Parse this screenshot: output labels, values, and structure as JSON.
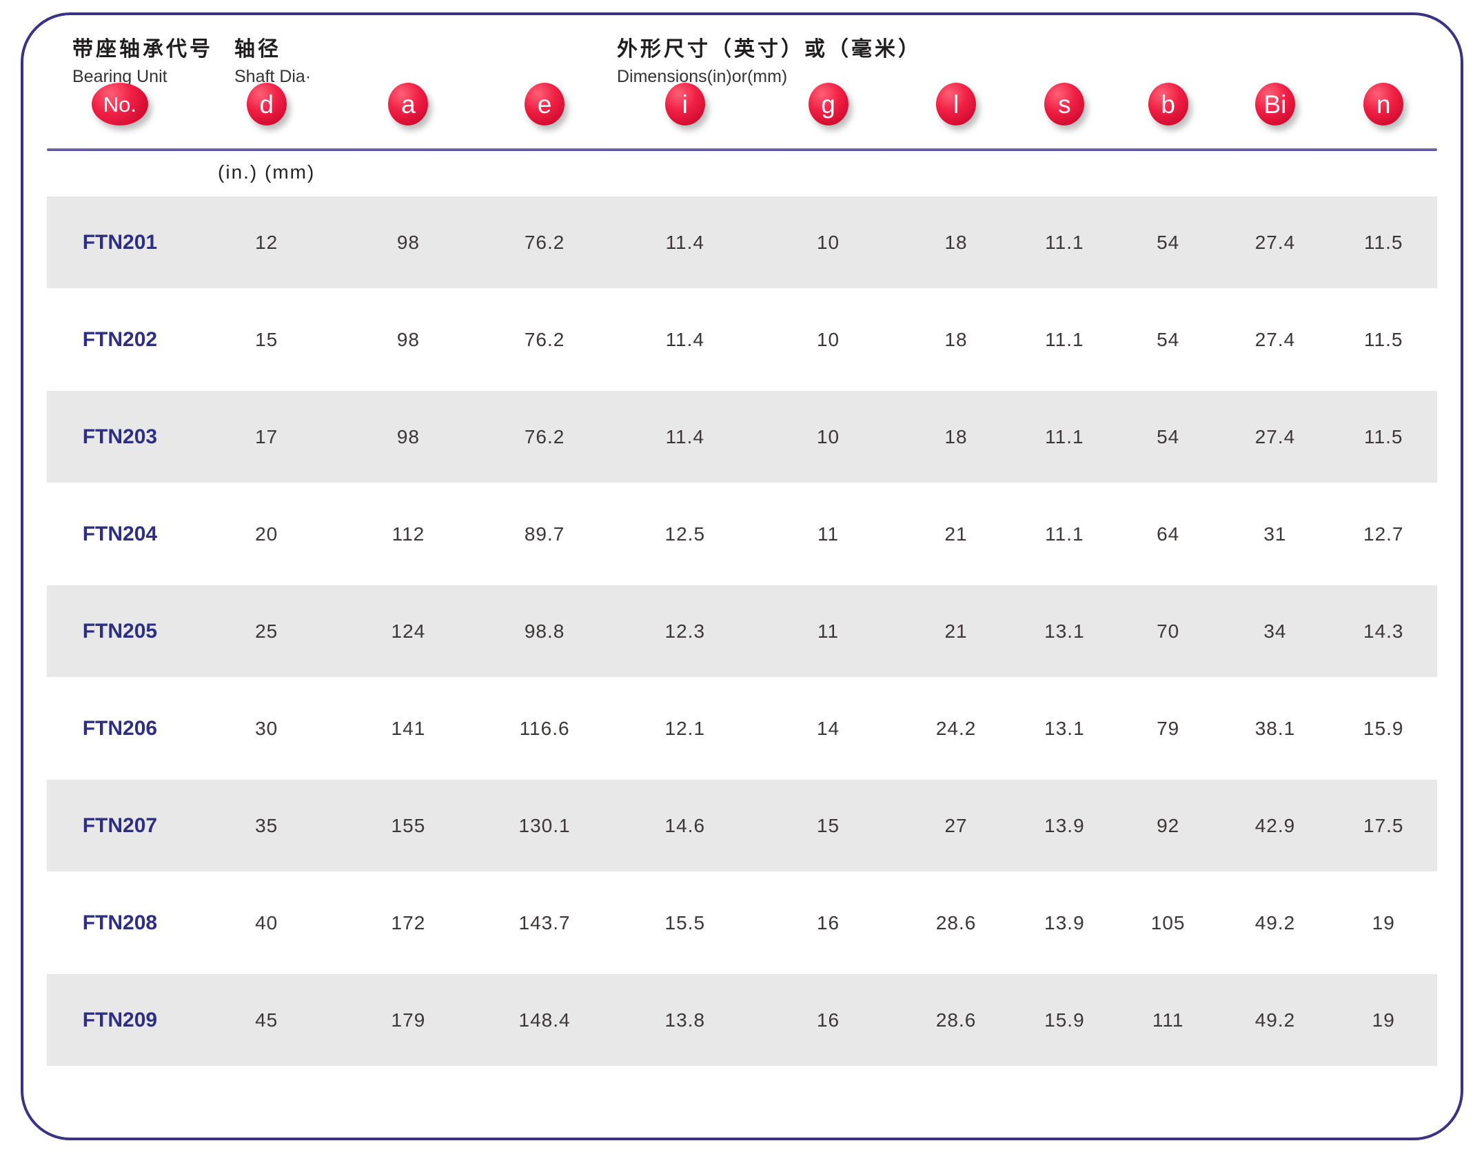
{
  "header": {
    "bearing_unit": {
      "zh": "带座轴承代号",
      "en": "Bearing Unit"
    },
    "shaft_dia": {
      "zh": "轴径",
      "en": "Shaft Dia·"
    },
    "dimensions": {
      "zh": "外形尺寸（英寸）或（毫米）",
      "en": "Dimensions(in)or(mm)"
    },
    "badges": [
      "No.",
      "d",
      "a",
      "e",
      "i",
      "g",
      "l",
      "s",
      "b",
      "Bi",
      "n"
    ],
    "units_label": "(in.)  (mm)"
  },
  "table": {
    "columns": [
      "No.",
      "d",
      "a",
      "e",
      "i",
      "g",
      "l",
      "s",
      "b",
      "Bi",
      "n"
    ],
    "rows": [
      {
        "no": "FTN201",
        "values": [
          "12",
          "98",
          "76.2",
          "11.4",
          "10",
          "18",
          "11.1",
          "54",
          "27.4",
          "11.5"
        ]
      },
      {
        "no": "FTN202",
        "values": [
          "15",
          "98",
          "76.2",
          "11.4",
          "10",
          "18",
          "11.1",
          "54",
          "27.4",
          "11.5"
        ]
      },
      {
        "no": "FTN203",
        "values": [
          "17",
          "98",
          "76.2",
          "11.4",
          "10",
          "18",
          "11.1",
          "54",
          "27.4",
          "11.5"
        ]
      },
      {
        "no": "FTN204",
        "values": [
          "20",
          "112",
          "89.7",
          "12.5",
          "11",
          "21",
          "11.1",
          "64",
          "31",
          "12.7"
        ]
      },
      {
        "no": "FTN205",
        "values": [
          "25",
          "124",
          "98.8",
          "12.3",
          "11",
          "21",
          "13.1",
          "70",
          "34",
          "14.3"
        ]
      },
      {
        "no": "FTN206",
        "values": [
          "30",
          "141",
          "116.6",
          "12.1",
          "14",
          "24.2",
          "13.1",
          "79",
          "38.1",
          "15.9"
        ]
      },
      {
        "no": "FTN207",
        "values": [
          "35",
          "155",
          "130.1",
          "14.6",
          "15",
          "27",
          "13.9",
          "92",
          "42.9",
          "17.5"
        ]
      },
      {
        "no": "FTN208",
        "values": [
          "40",
          "172",
          "143.7",
          "15.5",
          "16",
          "28.6",
          "13.9",
          "105",
          "49.2",
          "19"
        ]
      },
      {
        "no": "FTN209",
        "values": [
          "45",
          "179",
          "148.4",
          "13.8",
          "16",
          "28.6",
          "15.9",
          "111",
          "49.2",
          "19"
        ]
      }
    ]
  },
  "colors": {
    "panel_border": "#3a3383",
    "separator": "#433c8e",
    "badge_red": "#e81a3d",
    "row_stripe": "#e9e8e8",
    "code_text": "#2e2f84",
    "value_text": "#3c3737"
  }
}
